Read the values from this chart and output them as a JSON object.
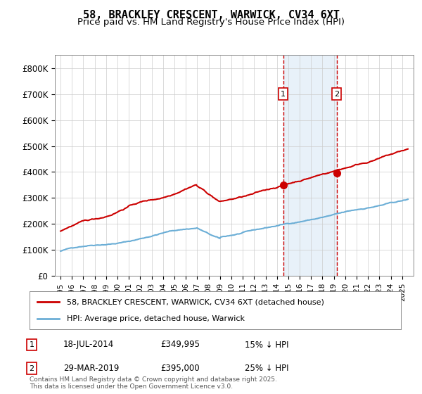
{
  "title": "58, BRACKLEY CRESCENT, WARWICK, CV34 6XT",
  "subtitle": "Price paid vs. HM Land Registry's House Price Index (HPI)",
  "legend_line1": "58, BRACKLEY CRESCENT, WARWICK, CV34 6XT (detached house)",
  "legend_line2": "HPI: Average price, detached house, Warwick",
  "annotation1_label": "1",
  "annotation1_date": "18-JUL-2014",
  "annotation1_price": "£349,995",
  "annotation1_note": "15% ↓ HPI",
  "annotation2_label": "2",
  "annotation2_date": "29-MAR-2019",
  "annotation2_price": "£395,000",
  "annotation2_note": "25% ↓ HPI",
  "footer": "Contains HM Land Registry data © Crown copyright and database right 2025.\nThis data is licensed under the Open Government Licence v3.0.",
  "hpi_color": "#6baed6",
  "price_color": "#cc0000",
  "vline_color": "#cc0000",
  "vshade_color": "#d9e8f5",
  "marker_color": "#cc0000",
  "annotation_box_color": "#cc0000",
  "ylim": [
    0,
    850000
  ],
  "yticks": [
    0,
    100000,
    200000,
    300000,
    400000,
    500000,
    600000,
    700000,
    800000
  ],
  "ytick_labels": [
    "£0",
    "£100K",
    "£200K",
    "£300K",
    "£400K",
    "£500K",
    "£600K",
    "£700K",
    "£800K"
  ],
  "sale1_year": 2014.55,
  "sale1_price": 349995,
  "sale2_year": 2019.24,
  "sale2_price": 395000
}
